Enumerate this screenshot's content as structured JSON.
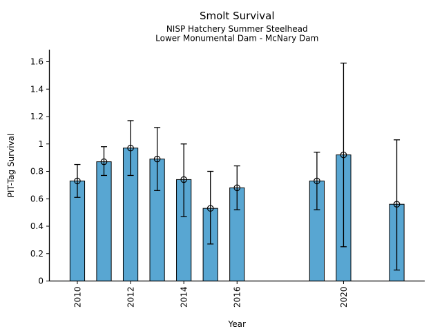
{
  "window": {
    "background": "#ffffff"
  },
  "chart_data": {
    "type": "bar",
    "title": "Smolt Survival",
    "subtitle1": "NISP Hatchery Summer Steelhead",
    "subtitle2": "Lower Monumental Dam - McNary Dam",
    "xlabel": "Year",
    "ylabel": "PIT-Tag Survival",
    "x_ticks": [
      2010,
      2012,
      2014,
      2016,
      2020
    ],
    "y_ticks": [
      0,
      0.2,
      0.4,
      0.6,
      0.8,
      1,
      1.2,
      1.4,
      1.6
    ],
    "xlim": [
      2008.95,
      2023.05
    ],
    "ylim": [
      0,
      1.688
    ],
    "bar_width_years": 0.55,
    "grid": false,
    "legend": null,
    "bar_color": "#58A6D2",
    "bar_edge_color": "#000000",
    "error_color": "#000000",
    "marker": "open-circle",
    "series": [
      {
        "year": 2010,
        "value": 0.73,
        "err_low": 0.61,
        "err_high": 0.85
      },
      {
        "year": 2011,
        "value": 0.87,
        "err_low": 0.77,
        "err_high": 0.98
      },
      {
        "year": 2012,
        "value": 0.97,
        "err_low": 0.77,
        "err_high": 1.17
      },
      {
        "year": 2013,
        "value": 0.89,
        "err_low": 0.66,
        "err_high": 1.12
      },
      {
        "year": 2014,
        "value": 0.74,
        "err_low": 0.47,
        "err_high": 1.0
      },
      {
        "year": 2015,
        "value": 0.53,
        "err_low": 0.27,
        "err_high": 0.8
      },
      {
        "year": 2016,
        "value": 0.68,
        "err_low": 0.52,
        "err_high": 0.84
      },
      {
        "year": 2019,
        "value": 0.73,
        "err_low": 0.52,
        "err_high": 0.94
      },
      {
        "year": 2020,
        "value": 0.92,
        "err_low": 0.25,
        "err_high": 1.59
      },
      {
        "year": 2022,
        "value": 0.56,
        "err_low": 0.08,
        "err_high": 1.03
      }
    ]
  }
}
